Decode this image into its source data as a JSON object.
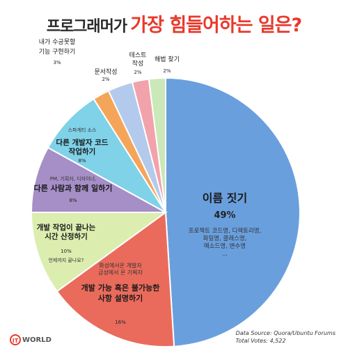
{
  "title_prefix": "프로그래머가",
  "title_highlight": "가장 힘들어하는 일은?",
  "colors": {
    "title_red": "#e8392c",
    "slices": [
      "#6a9fde",
      "#ea6b5c",
      "#dcedb0",
      "#a68ec6",
      "#7fd2e8",
      "#f5a55a",
      "#b3caec",
      "#f2a2ab",
      "#cbe8b8"
    ]
  },
  "chart_data": {
    "type": "pie",
    "title": "프로그래머가 가장 힘들어하는 일은?",
    "slices": [
      {
        "label": "이름 짓기",
        "value": 49,
        "value_label": "49%",
        "detail": [
          "프로젝트 코드명, 디렉토리명,",
          "파일명, 클래스명,",
          "메소드명, 변수명",
          "..."
        ]
      },
      {
        "label": "개발 가능 혹은 불가능한 사항 설명하기",
        "value": 16,
        "value_label": "16%",
        "detail": [
          "화성에서온 개발자",
          "금성에서 온 기획자"
        ]
      },
      {
        "label": "개발 작업이 끝나는 시간 산정하기",
        "value": 10,
        "value_label": "10%",
        "detail": [
          "언제까지 끝나요?"
        ]
      },
      {
        "label": "다른 사람과 함께 일하기",
        "value": 8,
        "value_label": "8%",
        "detail": [
          "PM, 기획자, 디자이너,"
        ]
      },
      {
        "label": "다른 개발자 코드 작업하기",
        "value": 8,
        "value_label": "8%",
        "detail": [
          "스파게티 소스"
        ]
      },
      {
        "label": "문서작성",
        "value": 2,
        "value_label": "2%",
        "detail": []
      },
      {
        "label": "내가 수긍못할 기능 구현하기",
        "value": 3,
        "value_label": "3%",
        "detail": []
      },
      {
        "label": "테스트 작성",
        "value": 2,
        "value_label": "2%",
        "detail": []
      },
      {
        "label": "해법 찾기",
        "value": 2,
        "value_label": "2%",
        "detail": []
      }
    ],
    "source": "Data Source: Quora/Ubuntu Forums",
    "votes": "Total Votes: 4,522"
  },
  "logo_text": "WORLD",
  "logo_mark": "IT"
}
